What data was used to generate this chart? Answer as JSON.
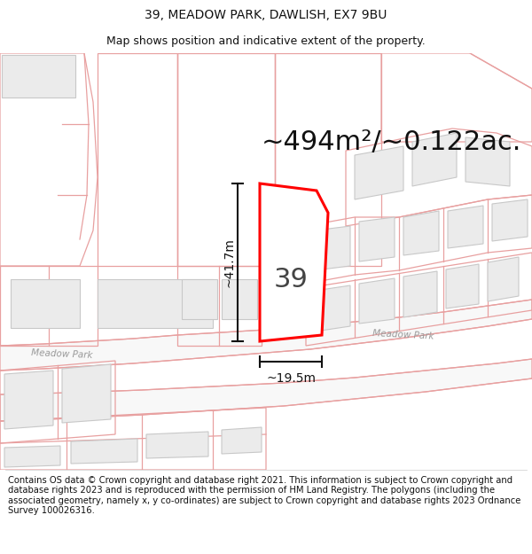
{
  "title_line1": "39, MEADOW PARK, DAWLISH, EX7 9BU",
  "title_line2": "Map shows position and indicative extent of the property.",
  "area_text": "~494m²/~0.122ac.",
  "dim_height": "~41.7m",
  "dim_width": "~19.5m",
  "label_number": "39",
  "footer_text": "Contains OS data © Crown copyright and database right 2021. This information is subject to Crown copyright and database rights 2023 and is reproduced with the permission of HM Land Registry. The polygons (including the associated geometry, namely x, y co-ordinates) are subject to Crown copyright and database rights 2023 Ordnance Survey 100026316.",
  "bg_color": "#ffffff",
  "road_outline_color": "#e8a0a0",
  "building_fill": "#ebebeb",
  "building_edge": "#c8c8c8",
  "road_fill": "#ffffff",
  "red_plot_color": "#ff0000",
  "dim_line_color": "#111111",
  "text_color": "#111111",
  "road_label_color": "#999999",
  "title_fontsize": 10,
  "area_fontsize": 22,
  "dim_fontsize": 10,
  "number_fontsize": 22,
  "footer_fontsize": 7.2,
  "road_lw": 0.9,
  "plot_lw": 2.2
}
